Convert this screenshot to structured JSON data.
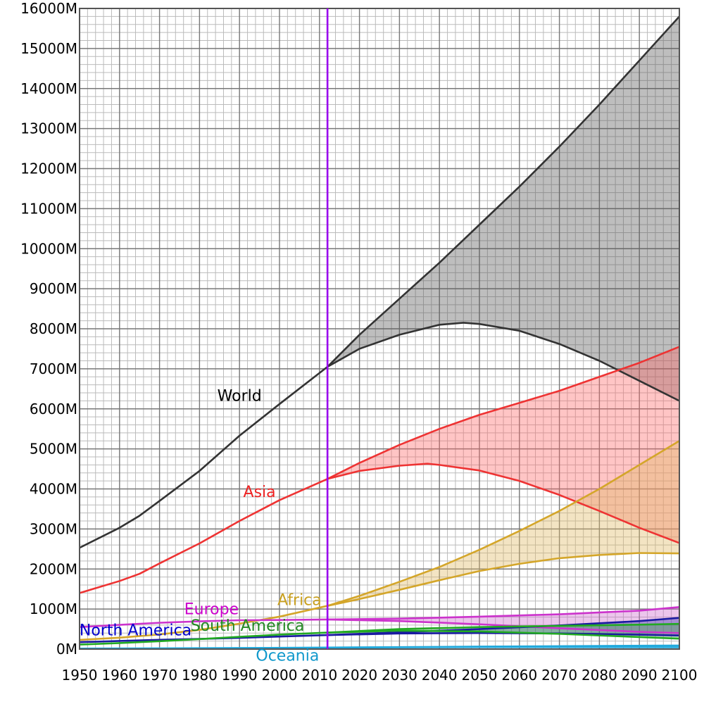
{
  "chart_data": {
    "type": "area",
    "title": "",
    "xlabel": "",
    "ylabel": "",
    "xlim": [
      1950,
      2100
    ],
    "ylim": [
      0,
      16000
    ],
    "y_unit_suffix": "M",
    "x_ticks": [
      1950,
      1960,
      1970,
      1980,
      1990,
      2000,
      2010,
      2020,
      2030,
      2040,
      2050,
      2060,
      2070,
      2080,
      2090,
      2100
    ],
    "y_ticks": [
      0,
      1000,
      2000,
      3000,
      4000,
      5000,
      6000,
      7000,
      8000,
      9000,
      10000,
      11000,
      12000,
      13000,
      14000,
      15000,
      16000
    ],
    "grid": true,
    "projection_start_year": 2012,
    "projection_marker_color": "#9900ee",
    "series": [
      {
        "name": "World",
        "color": "#333333",
        "fill": "#555555",
        "historic": [
          [
            1950,
            2530
          ],
          [
            1960,
            3030
          ],
          [
            1965,
            3330
          ],
          [
            1970,
            3700
          ],
          [
            1980,
            4450
          ],
          [
            1990,
            5330
          ],
          [
            2000,
            6120
          ],
          [
            2012,
            7050
          ]
        ],
        "high": [
          [
            2012,
            7050
          ],
          [
            2020,
            7850
          ],
          [
            2030,
            8750
          ],
          [
            2040,
            9650
          ],
          [
            2050,
            10600
          ],
          [
            2060,
            11550
          ],
          [
            2070,
            12550
          ],
          [
            2080,
            13600
          ],
          [
            2090,
            14700
          ],
          [
            2100,
            15800
          ]
        ],
        "low": [
          [
            2012,
            7050
          ],
          [
            2020,
            7500
          ],
          [
            2030,
            7850
          ],
          [
            2040,
            8100
          ],
          [
            2046,
            8150
          ],
          [
            2050,
            8120
          ],
          [
            2060,
            7950
          ],
          [
            2070,
            7620
          ],
          [
            2080,
            7200
          ],
          [
            2090,
            6700
          ],
          [
            2100,
            6200
          ]
        ],
        "label": {
          "text": "World",
          "x": 1990,
          "y": 6200,
          "color": "#000000"
        }
      },
      {
        "name": "Asia",
        "color": "#ee3333",
        "fill": "#ff6666",
        "historic": [
          [
            1950,
            1400
          ],
          [
            1960,
            1700
          ],
          [
            1965,
            1880
          ],
          [
            1970,
            2140
          ],
          [
            1980,
            2640
          ],
          [
            1990,
            3200
          ],
          [
            2000,
            3720
          ],
          [
            2012,
            4250
          ]
        ],
        "high": [
          [
            2012,
            4250
          ],
          [
            2020,
            4650
          ],
          [
            2030,
            5100
          ],
          [
            2040,
            5500
          ],
          [
            2050,
            5850
          ],
          [
            2060,
            6150
          ],
          [
            2070,
            6450
          ],
          [
            2080,
            6800
          ],
          [
            2090,
            7150
          ],
          [
            2100,
            7550
          ]
        ],
        "low": [
          [
            2012,
            4250
          ],
          [
            2020,
            4450
          ],
          [
            2030,
            4580
          ],
          [
            2037,
            4630
          ],
          [
            2040,
            4600
          ],
          [
            2050,
            4460
          ],
          [
            2060,
            4200
          ],
          [
            2070,
            3850
          ],
          [
            2080,
            3450
          ],
          [
            2090,
            3030
          ],
          [
            2100,
            2650
          ]
        ],
        "label": {
          "text": "Asia",
          "x": 1995,
          "y": 3800,
          "color": "#ee2222"
        }
      },
      {
        "name": "Africa",
        "color": "#d4a62a",
        "fill": "#e0b860",
        "historic": [
          [
            1950,
            230
          ],
          [
            1960,
            285
          ],
          [
            1970,
            365
          ],
          [
            1980,
            480
          ],
          [
            1990,
            635
          ],
          [
            2000,
            810
          ],
          [
            2012,
            1080
          ]
        ],
        "high": [
          [
            2012,
            1080
          ],
          [
            2020,
            1330
          ],
          [
            2030,
            1680
          ],
          [
            2040,
            2050
          ],
          [
            2050,
            2480
          ],
          [
            2060,
            2950
          ],
          [
            2070,
            3450
          ],
          [
            2080,
            4000
          ],
          [
            2090,
            4600
          ],
          [
            2100,
            5200
          ]
        ],
        "low": [
          [
            2012,
            1080
          ],
          [
            2020,
            1250
          ],
          [
            2030,
            1480
          ],
          [
            2040,
            1720
          ],
          [
            2050,
            1950
          ],
          [
            2060,
            2130
          ],
          [
            2070,
            2270
          ],
          [
            2080,
            2350
          ],
          [
            2090,
            2400
          ],
          [
            2100,
            2390
          ]
        ],
        "label": {
          "text": "Africa",
          "x": 2005,
          "y": 1100,
          "color": "#c9a020"
        }
      },
      {
        "name": "Europe",
        "color": "#cc33cc",
        "fill": "#cc66cc",
        "historic": [
          [
            1950,
            550
          ],
          [
            1960,
            605
          ],
          [
            1970,
            657
          ],
          [
            1980,
            694
          ],
          [
            1990,
            721
          ],
          [
            2000,
            727
          ],
          [
            2012,
            740
          ]
        ],
        "high": [
          [
            2012,
            740
          ],
          [
            2030,
            760
          ],
          [
            2050,
            810
          ],
          [
            2070,
            870
          ],
          [
            2090,
            960
          ],
          [
            2100,
            1050
          ]
        ],
        "low": [
          [
            2012,
            740
          ],
          [
            2030,
            700
          ],
          [
            2050,
            620
          ],
          [
            2070,
            520
          ],
          [
            2090,
            430
          ],
          [
            2100,
            400
          ]
        ],
        "label": {
          "text": "Europe",
          "x": 1983,
          "y": 870,
          "color": "#cc00cc"
        }
      },
      {
        "name": "North America",
        "color": "#1a1aa0",
        "fill": "#3333aa",
        "historic": [
          [
            1950,
            172
          ],
          [
            1960,
            204
          ],
          [
            1970,
            231
          ],
          [
            1980,
            254
          ],
          [
            1990,
            280
          ],
          [
            2000,
            313
          ],
          [
            2012,
            350
          ]
        ],
        "high": [
          [
            2012,
            350
          ],
          [
            2030,
            420
          ],
          [
            2050,
            500
          ],
          [
            2070,
            590
          ],
          [
            2090,
            700
          ],
          [
            2100,
            780
          ]
        ],
        "low": [
          [
            2012,
            350
          ],
          [
            2030,
            390
          ],
          [
            2050,
            400
          ],
          [
            2070,
            390
          ],
          [
            2090,
            360
          ],
          [
            2100,
            340
          ]
        ],
        "label": {
          "text": "North America",
          "x": 1964,
          "y": 340,
          "color": "#0000cc"
        }
      },
      {
        "name": "South America",
        "color": "#22aa22",
        "fill": "#44aa44",
        "historic": [
          [
            1950,
            113
          ],
          [
            1960,
            150
          ],
          [
            1970,
            196
          ],
          [
            1980,
            250
          ],
          [
            1990,
            306
          ],
          [
            2000,
            361
          ],
          [
            2012,
            412
          ]
        ],
        "high": [
          [
            2012,
            412
          ],
          [
            2030,
            500
          ],
          [
            2050,
            550
          ],
          [
            2070,
            580
          ],
          [
            2090,
            610
          ],
          [
            2100,
            630
          ]
        ],
        "low": [
          [
            2012,
            412
          ],
          [
            2030,
            460
          ],
          [
            2050,
            440
          ],
          [
            2070,
            380
          ],
          [
            2090,
            300
          ],
          [
            2100,
            260
          ]
        ],
        "label": {
          "text": "South America",
          "x": 1992,
          "y": 460,
          "color": "#228822"
        }
      },
      {
        "name": "Oceania",
        "color": "#22aadd",
        "fill": "#44bbdd",
        "historic": [
          [
            1950,
            13
          ],
          [
            1970,
            20
          ],
          [
            1990,
            27
          ],
          [
            2012,
            38
          ]
        ],
        "high": [
          [
            2012,
            38
          ],
          [
            2050,
            62
          ],
          [
            2100,
            90
          ]
        ],
        "low": [
          [
            2012,
            38
          ],
          [
            2050,
            50
          ],
          [
            2100,
            45
          ]
        ],
        "label": {
          "text": "Oceania",
          "x": 2002,
          "y": -290,
          "color": "#1199cc"
        }
      }
    ]
  }
}
